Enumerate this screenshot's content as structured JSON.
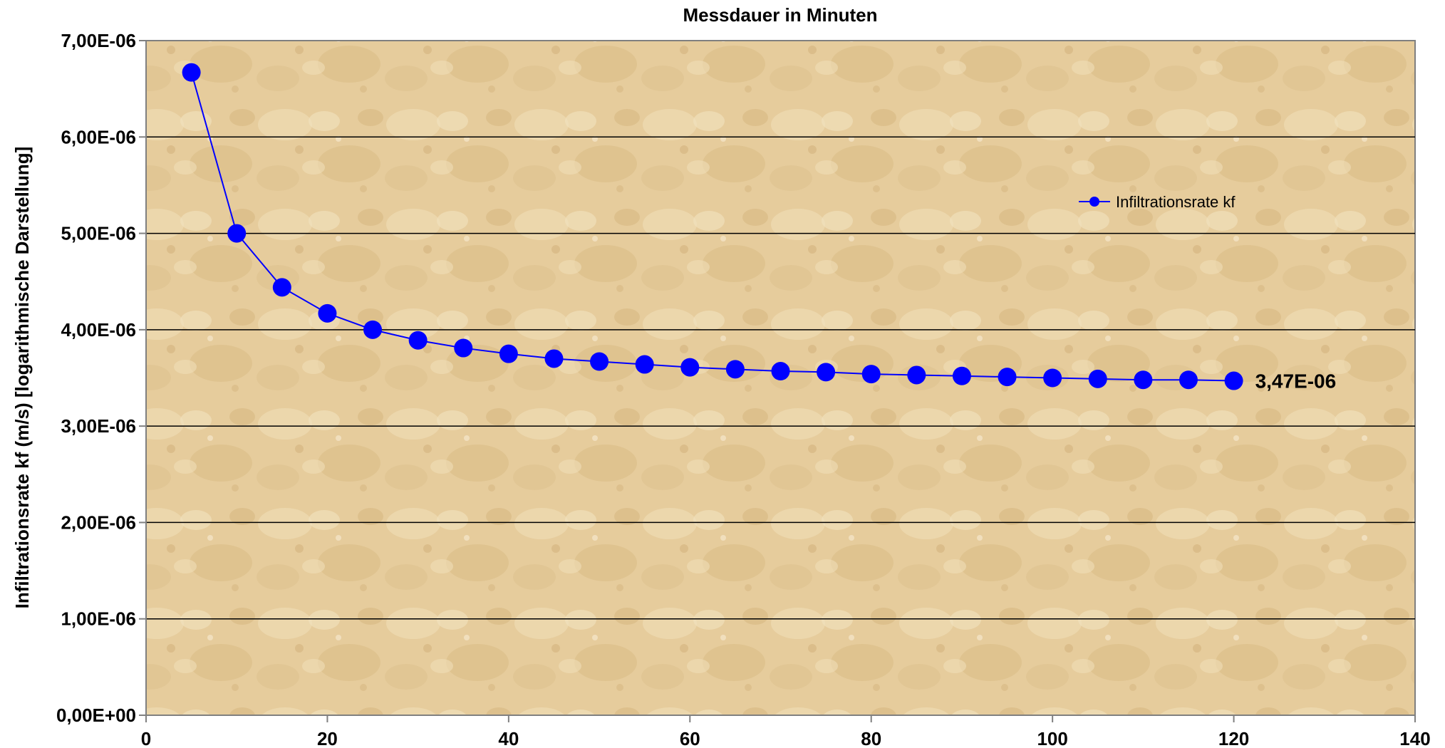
{
  "chart_data": {
    "type": "line",
    "title": "",
    "xlabel": "Messdauer in Minuten",
    "ylabel": "Infiltrationsrate kf (m/s) [logarithmische Darstellung]",
    "xlim": [
      0,
      140
    ],
    "ylim": [
      0,
      7e-06
    ],
    "x_ticks": [
      0,
      20,
      40,
      60,
      80,
      100,
      120,
      140
    ],
    "x_tick_labels": [
      "0",
      "20",
      "40",
      "60",
      "80",
      "100",
      "120",
      "140"
    ],
    "y_ticks": [
      0,
      1e-06,
      2e-06,
      3e-06,
      4e-06,
      5e-06,
      6e-06,
      7e-06
    ],
    "y_tick_labels": [
      "0,00E+00",
      "1,00E-06",
      "2,00E-06",
      "3,00E-06",
      "4,00E-06",
      "5,00E-06",
      "6,00E-06",
      "7,00E-06"
    ],
    "grid": "horizontal",
    "legend_position": "top-right",
    "series": [
      {
        "name": "Infiltrationsrate kf",
        "color": "#0000ff",
        "x": [
          5,
          10,
          15,
          20,
          25,
          30,
          35,
          40,
          45,
          50,
          55,
          60,
          65,
          70,
          75,
          80,
          85,
          90,
          95,
          100,
          105,
          110,
          115,
          120
        ],
        "y": [
          6.67e-06,
          5e-06,
          4.44e-06,
          4.17e-06,
          4e-06,
          3.89e-06,
          3.81e-06,
          3.75e-06,
          3.7e-06,
          3.67e-06,
          3.64e-06,
          3.61e-06,
          3.59e-06,
          3.57e-06,
          3.56e-06,
          3.54e-06,
          3.53e-06,
          3.52e-06,
          3.51e-06,
          3.5e-06,
          3.49e-06,
          3.48e-06,
          3.48e-06,
          3.47e-06
        ]
      }
    ],
    "annotations": [
      {
        "text": "3,47E-06",
        "x": 120,
        "y": 3.47e-06
      }
    ]
  }
}
